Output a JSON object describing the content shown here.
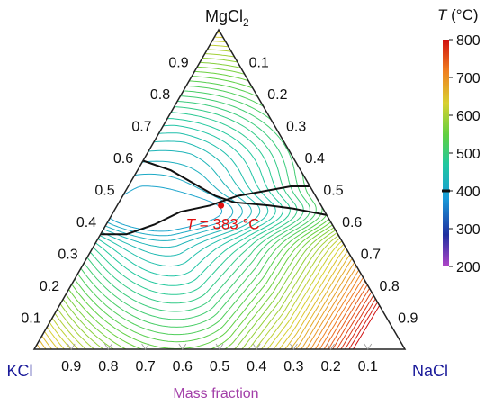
{
  "chart_data": {
    "type": "ternary-contour",
    "vertices": {
      "top": {
        "label": "MgCl",
        "sub": "2"
      },
      "left": {
        "label": "KCl"
      },
      "right": {
        "label": "NaCl"
      }
    },
    "left_edge_ticks": [
      "0.1",
      "0.2",
      "0.3",
      "0.4",
      "0.5",
      "0.6",
      "0.7",
      "0.8",
      "0.9"
    ],
    "right_edge_ticks": [
      "0.1",
      "0.2",
      "0.3",
      "0.4",
      "0.5",
      "0.6",
      "0.7",
      "0.8",
      "0.9"
    ],
    "bottom_edge_ticks": [
      "0.9",
      "0.8",
      "0.7",
      "0.6",
      "0.5",
      "0.4",
      "0.3",
      "0.2",
      "0.1"
    ],
    "xlabel": "Mass fraction",
    "colorbar": {
      "title_symbol": "T",
      "title_unit": " (°C)",
      "range": [
        200,
        800
      ],
      "ticks": [
        "800",
        "700",
        "600",
        "500",
        "400",
        "300",
        "200"
      ],
      "tick_values": [
        800,
        700,
        600,
        500,
        400,
        300,
        200
      ],
      "colors": [
        "#b044c8",
        "#2030a0",
        "#1a9ad8",
        "#20c8a0",
        "#60d040",
        "#d8d030",
        "#f08020",
        "#d01010"
      ],
      "marker_value": 400
    },
    "minimum_point": {
      "composition": {
        "MgCl2": 0.45,
        "KCl": 0.27,
        "NaCl": 0.28
      },
      "label_symbol": "T",
      "label_value": " = 383 °C",
      "color": "#e01010"
    },
    "eutectic_valleys": [
      {
        "name": "valley-upper",
        "points": [
          [
            0.59,
            0.41,
            0.0
          ],
          [
            0.56,
            0.35,
            0.09
          ],
          [
            0.52,
            0.31,
            0.17
          ],
          [
            0.48,
            0.27,
            0.25
          ],
          [
            0.46,
            0.23,
            0.31
          ],
          [
            0.45,
            0.14,
            0.41
          ],
          [
            0.44,
            0.08,
            0.48
          ],
          [
            0.42,
            0.0,
            0.58
          ]
        ]
      },
      {
        "name": "valley-lower",
        "points": [
          [
            0.36,
            0.64,
            0.0
          ],
          [
            0.36,
            0.57,
            0.07
          ],
          [
            0.39,
            0.48,
            0.13
          ],
          [
            0.43,
            0.39,
            0.18
          ],
          [
            0.45,
            0.3,
            0.25
          ],
          [
            0.48,
            0.21,
            0.31
          ],
          [
            0.51,
            0.05,
            0.44
          ],
          [
            0.51,
            0.0,
            0.49
          ]
        ]
      }
    ],
    "composition_axes": "mass fraction of MgCl2 along left edge, NaCl along bottom edge, and the complement along right edge"
  }
}
